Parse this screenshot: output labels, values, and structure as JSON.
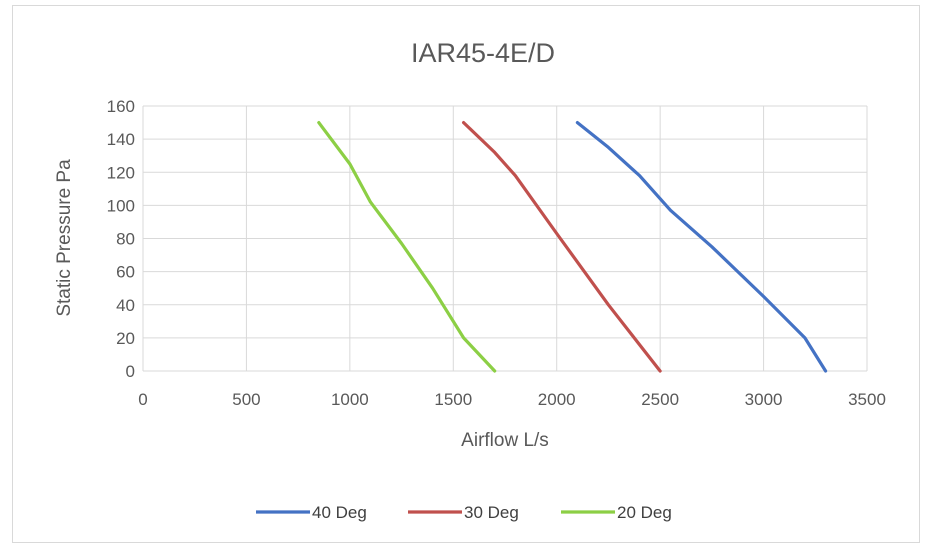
{
  "chart_data": {
    "type": "line",
    "title": "IAR45-4E/D",
    "xlabel": "Airflow L/s",
    "ylabel": "Static Pressure Pa",
    "xlim": [
      0,
      3500
    ],
    "ylim": [
      0,
      160
    ],
    "xticks": [
      0,
      500,
      1000,
      1500,
      2000,
      2500,
      3000,
      3500
    ],
    "yticks": [
      0,
      20,
      40,
      60,
      80,
      100,
      120,
      140,
      160
    ],
    "grid": true,
    "legend_position": "bottom",
    "series": [
      {
        "name": "40 Deg",
        "color": "#4472c4",
        "points": [
          [
            2100,
            150
          ],
          [
            2250,
            135
          ],
          [
            2400,
            118
          ],
          [
            2550,
            97
          ],
          [
            2750,
            75
          ],
          [
            3000,
            45
          ],
          [
            3200,
            20
          ],
          [
            3300,
            0
          ]
        ]
      },
      {
        "name": "30 Deg",
        "color": "#c0504d",
        "points": [
          [
            1550,
            150
          ],
          [
            1700,
            132
          ],
          [
            1800,
            118
          ],
          [
            2000,
            83
          ],
          [
            2250,
            40
          ],
          [
            2500,
            0
          ]
        ]
      },
      {
        "name": "20 Deg",
        "color": "#8ccf45",
        "points": [
          [
            850,
            150
          ],
          [
            1000,
            125
          ],
          [
            1100,
            102
          ],
          [
            1250,
            77
          ],
          [
            1400,
            50
          ],
          [
            1550,
            20
          ],
          [
            1700,
            0
          ]
        ]
      }
    ]
  }
}
